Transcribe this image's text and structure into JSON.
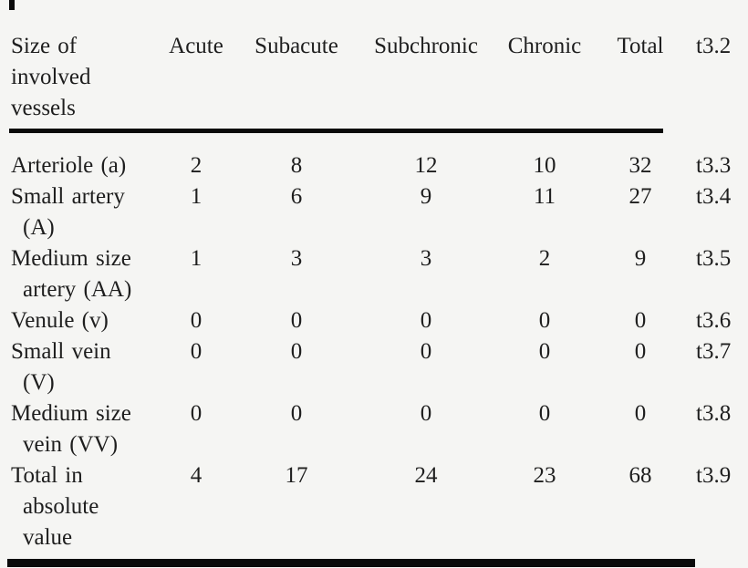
{
  "page": {
    "background": "#f5f5f3",
    "ink_color": "#1e1e1e",
    "rule_color": "#0a0a0a"
  },
  "table": {
    "header": {
      "label": "Size of\ninvolved\nvessels",
      "cols": [
        "Acute",
        "Subacute",
        "Subchronic",
        "Chronic",
        "Total"
      ],
      "line_ref": "t3.2"
    },
    "rows": [
      {
        "label": "Arteriole (a)",
        "values": [
          "2",
          "8",
          "12",
          "10",
          "32"
        ],
        "line_ref": "t3.3"
      },
      {
        "label": "Small artery\n(A)",
        "values": [
          "1",
          "6",
          "9",
          "11",
          "27"
        ],
        "line_ref": "t3.4"
      },
      {
        "label": "Medium size\nartery (AA)",
        "values": [
          "1",
          "3",
          "3",
          "2",
          "9"
        ],
        "line_ref": "t3.5"
      },
      {
        "label": "Venule (v)",
        "values": [
          "0",
          "0",
          "0",
          "0",
          "0"
        ],
        "line_ref": "t3.6"
      },
      {
        "label": "Small vein\n(V)",
        "values": [
          "0",
          "0",
          "0",
          "0",
          "0"
        ],
        "line_ref": "t3.7"
      },
      {
        "label": "Medium size\nvein (VV)",
        "values": [
          "0",
          "0",
          "0",
          "0",
          "0"
        ],
        "line_ref": "t3.8"
      },
      {
        "label": "Total in\nabsolute\nvalue",
        "values": [
          "4",
          "17",
          "24",
          "23",
          "68"
        ],
        "line_ref": "t3.9"
      }
    ]
  }
}
